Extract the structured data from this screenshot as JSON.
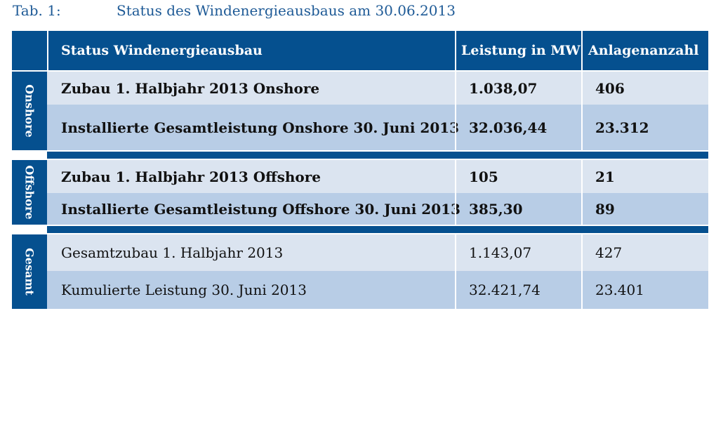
{
  "caption": {
    "label": "Tab. 1:",
    "title": "Status des Windenergieausbaus am 30.06.2013"
  },
  "table": {
    "headers": {
      "status": "Status Windenergieausbau",
      "leistung": "Leistung in MW",
      "anlagen": "Anlagenanzahl"
    },
    "groups": {
      "onshore": {
        "label": "Onshore",
        "rows": [
          {
            "status": "Zubau 1. Halbjahr 2013 Onshore",
            "leistung": "1.038,07",
            "anlagen": "406"
          },
          {
            "status": "Installierte Gesamtleistung Onshore 30. Juni 2013",
            "leistung": "32.036,44",
            "anlagen": "23.312"
          }
        ]
      },
      "offshore": {
        "label": "Offshore",
        "rows": [
          {
            "status": "Zubau 1. Halbjahr 2013 Offshore",
            "leistung": "105",
            "anlagen": "21"
          },
          {
            "status": "Installierte Gesamtleistung Offshore 30. Juni 2013",
            "leistung": "385,30",
            "anlagen": "89"
          }
        ]
      },
      "gesamt": {
        "label": "Gesamt",
        "rows": [
          {
            "status": "Gesamtzubau 1. Halbjahr 2013",
            "leistung": "1.143,07",
            "anlagen": "427"
          },
          {
            "status": "Kumulierte Leistung 30. Juni 2013",
            "leistung": "32.421,74",
            "anlagen": "23.401"
          }
        ]
      }
    },
    "colors": {
      "header_blue": "#05508f",
      "row_light": "#dbe4f0",
      "row_mid": "#b8cde6",
      "caption_blue": "#1e5a96"
    }
  }
}
